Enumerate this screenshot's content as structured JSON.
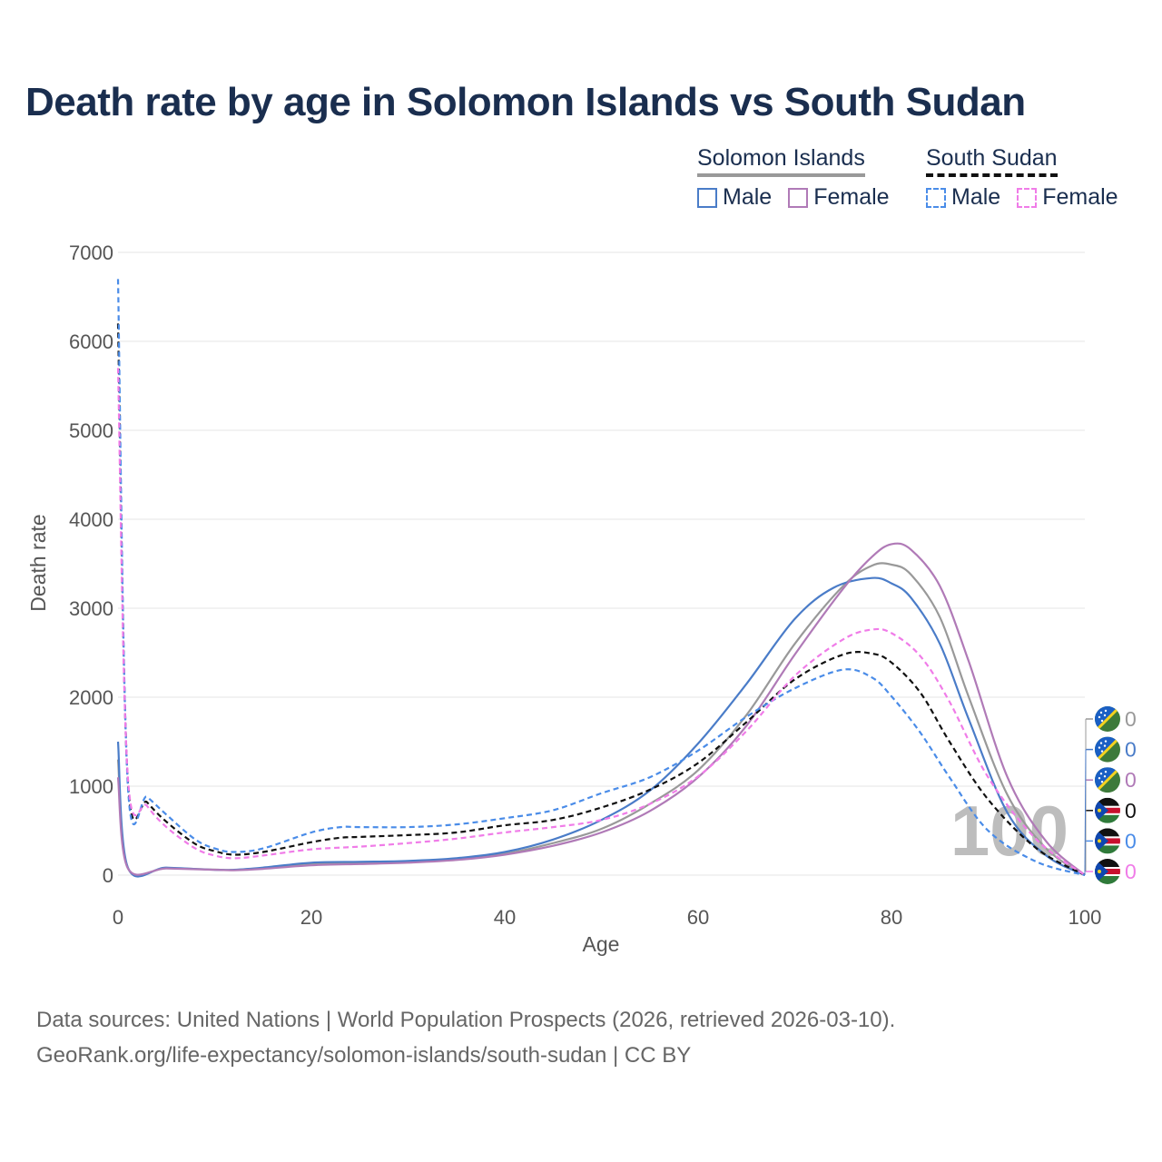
{
  "chart_data": {
    "type": "line",
    "title": "Death rate by age in Solomon Islands vs South Sudan",
    "xlabel": "Age",
    "ylabel": "Death rate",
    "xlim": [
      0,
      100
    ],
    "ylim": [
      0,
      7000
    ],
    "x_ticks": [
      0,
      20,
      40,
      60,
      80,
      100
    ],
    "y_ticks": [
      0,
      1000,
      2000,
      3000,
      4000,
      5000,
      6000,
      7000
    ],
    "grid": true,
    "watermark": "100",
    "legend": {
      "groups": [
        {
          "name": "Solomon Islands",
          "items": [
            "Male",
            "Female"
          ]
        },
        {
          "name": "South Sudan",
          "items": [
            "Male",
            "Female"
          ]
        }
      ]
    },
    "series": [
      {
        "name": "Solomon Islands (total)",
        "country": "Solomon Islands",
        "sex": "Total",
        "color": "#999999",
        "dash": "solid",
        "end_label": "0",
        "points": [
          [
            0,
            1300
          ],
          [
            1,
            85
          ],
          [
            5,
            80
          ],
          [
            10,
            62
          ],
          [
            12,
            58
          ],
          [
            15,
            80
          ],
          [
            20,
            130
          ],
          [
            25,
            140
          ],
          [
            30,
            150
          ],
          [
            35,
            180
          ],
          [
            40,
            240
          ],
          [
            45,
            360
          ],
          [
            50,
            520
          ],
          [
            55,
            800
          ],
          [
            60,
            1180
          ],
          [
            65,
            1800
          ],
          [
            70,
            2600
          ],
          [
            75,
            3250
          ],
          [
            78,
            3480
          ],
          [
            80,
            3490
          ],
          [
            82,
            3380
          ],
          [
            85,
            2900
          ],
          [
            88,
            2000
          ],
          [
            92,
            900
          ],
          [
            96,
            300
          ],
          [
            100,
            0
          ]
        ]
      },
      {
        "name": "Solomon Islands Male",
        "country": "Solomon Islands",
        "sex": "Male",
        "color": "#4a7cc8",
        "dash": "solid",
        "end_label": "0",
        "points": [
          [
            0,
            1500
          ],
          [
            1,
            90
          ],
          [
            5,
            85
          ],
          [
            10,
            60
          ],
          [
            12,
            60
          ],
          [
            15,
            85
          ],
          [
            20,
            140
          ],
          [
            25,
            150
          ],
          [
            30,
            160
          ],
          [
            35,
            190
          ],
          [
            40,
            260
          ],
          [
            45,
            400
          ],
          [
            50,
            620
          ],
          [
            55,
            950
          ],
          [
            60,
            1480
          ],
          [
            65,
            2150
          ],
          [
            70,
            2880
          ],
          [
            74,
            3230
          ],
          [
            78,
            3340
          ],
          [
            80,
            3280
          ],
          [
            82,
            3120
          ],
          [
            85,
            2600
          ],
          [
            88,
            1750
          ],
          [
            92,
            700
          ],
          [
            96,
            220
          ],
          [
            100,
            0
          ]
        ]
      },
      {
        "name": "Solomon Islands Female",
        "country": "Solomon Islands",
        "sex": "Female",
        "color": "#b07ab7",
        "dash": "solid",
        "end_label": "0",
        "points": [
          [
            0,
            1100
          ],
          [
            1,
            80
          ],
          [
            5,
            75
          ],
          [
            10,
            60
          ],
          [
            12,
            55
          ],
          [
            15,
            70
          ],
          [
            20,
            110
          ],
          [
            25,
            125
          ],
          [
            30,
            140
          ],
          [
            35,
            170
          ],
          [
            40,
            230
          ],
          [
            45,
            330
          ],
          [
            50,
            480
          ],
          [
            55,
            720
          ],
          [
            60,
            1100
          ],
          [
            65,
            1680
          ],
          [
            70,
            2480
          ],
          [
            75,
            3220
          ],
          [
            78,
            3580
          ],
          [
            80,
            3720
          ],
          [
            82,
            3660
          ],
          [
            85,
            3250
          ],
          [
            88,
            2400
          ],
          [
            92,
            1100
          ],
          [
            96,
            380
          ],
          [
            100,
            0
          ]
        ]
      },
      {
        "name": "South Sudan (total)",
        "country": "South Sudan",
        "sex": "Total",
        "color": "#111111",
        "dash": "dashed",
        "end_label": "0",
        "points": [
          [
            0,
            6200
          ],
          [
            1,
            1080
          ],
          [
            3,
            820
          ],
          [
            5,
            600
          ],
          [
            8,
            350
          ],
          [
            10,
            270
          ],
          [
            12,
            230
          ],
          [
            15,
            260
          ],
          [
            20,
            370
          ],
          [
            23,
            420
          ],
          [
            25,
            430
          ],
          [
            30,
            450
          ],
          [
            35,
            480
          ],
          [
            40,
            560
          ],
          [
            45,
            620
          ],
          [
            50,
            760
          ],
          [
            55,
            960
          ],
          [
            60,
            1260
          ],
          [
            65,
            1720
          ],
          [
            70,
            2200
          ],
          [
            75,
            2480
          ],
          [
            78,
            2490
          ],
          [
            80,
            2390
          ],
          [
            83,
            2050
          ],
          [
            86,
            1500
          ],
          [
            90,
            850
          ],
          [
            95,
            300
          ],
          [
            100,
            0
          ]
        ]
      },
      {
        "name": "South Sudan Male",
        "country": "South Sudan",
        "sex": "Male",
        "color": "#4a8ce8",
        "dash": "dashed",
        "end_label": "0",
        "points": [
          [
            0,
            6700
          ],
          [
            1,
            1030
          ],
          [
            3,
            880
          ],
          [
            5,
            680
          ],
          [
            8,
            400
          ],
          [
            10,
            300
          ],
          [
            12,
            260
          ],
          [
            15,
            300
          ],
          [
            20,
            480
          ],
          [
            23,
            540
          ],
          [
            25,
            540
          ],
          [
            30,
            540
          ],
          [
            35,
            570
          ],
          [
            40,
            640
          ],
          [
            45,
            730
          ],
          [
            50,
            920
          ],
          [
            55,
            1100
          ],
          [
            60,
            1400
          ],
          [
            65,
            1780
          ],
          [
            70,
            2100
          ],
          [
            75,
            2310
          ],
          [
            78,
            2220
          ],
          [
            80,
            2010
          ],
          [
            83,
            1600
          ],
          [
            86,
            1100
          ],
          [
            90,
            500
          ],
          [
            95,
            150
          ],
          [
            100,
            0
          ]
        ]
      },
      {
        "name": "South Sudan Female",
        "country": "South Sudan",
        "sex": "Female",
        "color": "#f07ce8",
        "dash": "dashed",
        "end_label": "0",
        "points": [
          [
            0,
            5700
          ],
          [
            1,
            1120
          ],
          [
            3,
            780
          ],
          [
            5,
            540
          ],
          [
            8,
            300
          ],
          [
            10,
            220
          ],
          [
            12,
            190
          ],
          [
            15,
            220
          ],
          [
            20,
            290
          ],
          [
            25,
            320
          ],
          [
            30,
            360
          ],
          [
            35,
            410
          ],
          [
            40,
            480
          ],
          [
            45,
            540
          ],
          [
            50,
            620
          ],
          [
            55,
            800
          ],
          [
            60,
            1110
          ],
          [
            65,
            1620
          ],
          [
            70,
            2240
          ],
          [
            75,
            2650
          ],
          [
            78,
            2760
          ],
          [
            80,
            2720
          ],
          [
            83,
            2460
          ],
          [
            86,
            1950
          ],
          [
            90,
            1100
          ],
          [
            95,
            400
          ],
          [
            100,
            0
          ]
        ]
      }
    ]
  },
  "legend": {
    "solomon_islands": "Solomon Islands",
    "south_sudan": "South Sudan",
    "male": "Male",
    "female": "Female"
  },
  "colors": {
    "title": "#1a2e4f",
    "grid": "#e6e6e6",
    "tick_text": "#555555",
    "flag_si_blue": "#1a5fc4",
    "flag_si_green": "#3d7a3a",
    "flag_si_yellow": "#f4d21f",
    "flag_ss_black": "#111111",
    "flag_ss_red": "#c8102e",
    "flag_ss_green": "#2f7a3a",
    "flag_ss_blue": "#0f47af"
  },
  "footer": {
    "line1": "Data sources: United Nations | World Population Prospects (2026, retrieved 2026-03-10).",
    "line2": "GeoRank.org/life-expectancy/solomon-islands/south-sudan | CC BY"
  }
}
